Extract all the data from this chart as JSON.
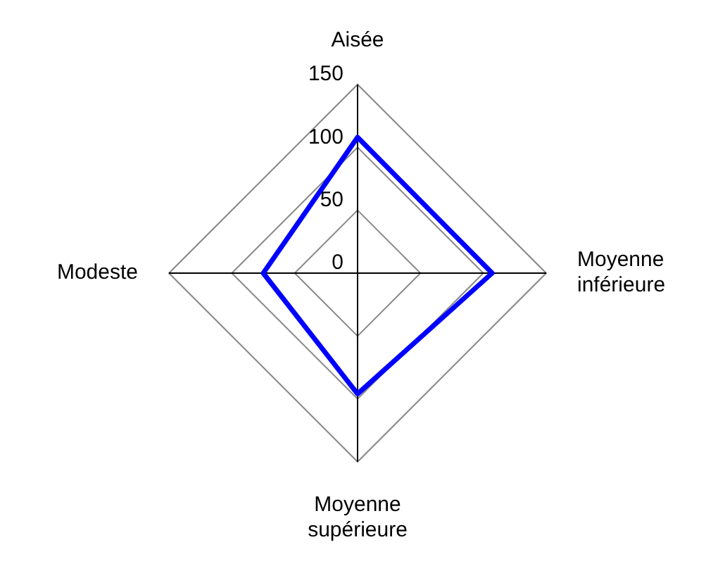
{
  "chart_data": {
    "type": "radar",
    "categories": [
      "Aisée",
      "Moyenne inférieure",
      "Moyenne supérieure",
      "Modeste"
    ],
    "series": [
      {
        "color": "#0000ff",
        "values": [
          108,
          107,
          96,
          75
        ]
      }
    ],
    "ylim": [
      0,
      150
    ],
    "yticks": [
      0,
      50,
      100,
      150
    ],
    "grid": true,
    "legend": false,
    "marker": "none",
    "line_style": "solid"
  }
}
